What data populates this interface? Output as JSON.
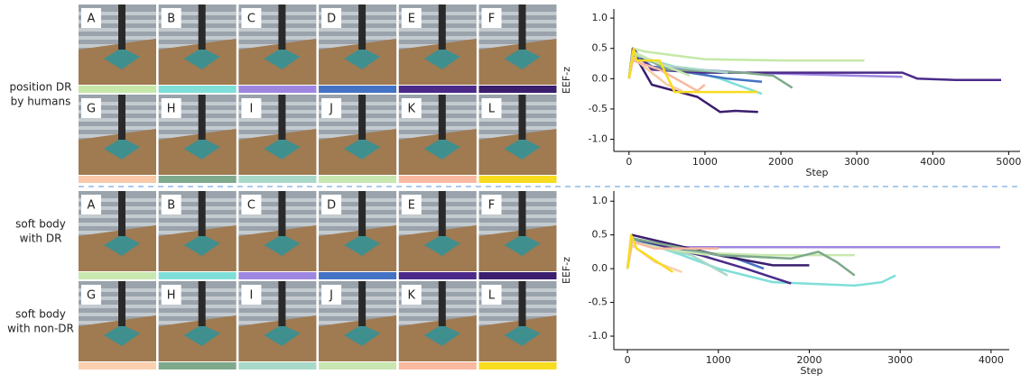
{
  "panels": [
    {
      "row_labels": [
        [
          "position DR",
          "by humans"
        ]
      ],
      "photos": [
        {
          "label": "A",
          "color": "#c5e8a8"
        },
        {
          "label": "B",
          "color": "#7fdfd8"
        },
        {
          "label": "C",
          "color": "#9d86e0"
        },
        {
          "label": "D",
          "color": "#4472c4"
        },
        {
          "label": "E",
          "color": "#4b2a8a"
        },
        {
          "label": "F",
          "color": "#3b1e6e"
        },
        {
          "label": "G",
          "color": "#f9c8a8"
        },
        {
          "label": "H",
          "color": "#7fa98c"
        },
        {
          "label": "I",
          "color": "#a8d8c8"
        },
        {
          "label": "J",
          "color": "#c8e6b0"
        },
        {
          "label": "K",
          "color": "#f9b8a0"
        },
        {
          "label": "L",
          "color": "#f7dc1f"
        }
      ]
    },
    {
      "row_labels": [
        [
          "soft body",
          "with DR"
        ],
        [
          "soft body",
          "with non-DR"
        ]
      ],
      "photos": [
        {
          "label": "A",
          "color": "#c8e8b0"
        },
        {
          "label": "B",
          "color": "#7fdfd8"
        },
        {
          "label": "C",
          "color": "#9d86e0"
        },
        {
          "label": "D",
          "color": "#4472c4"
        },
        {
          "label": "E",
          "color": "#4b2a8a"
        },
        {
          "label": "F",
          "color": "#3b1e6e"
        },
        {
          "label": "G",
          "color": "#fbd0b0"
        },
        {
          "label": "H",
          "color": "#7fa98c"
        },
        {
          "label": "I",
          "color": "#a8d8c8"
        },
        {
          "label": "J",
          "color": "#c8e6b0"
        },
        {
          "label": "K",
          "color": "#f9b8a0"
        },
        {
          "label": "L",
          "color": "#f7dc1f"
        }
      ]
    }
  ],
  "chart_data": [
    {
      "type": "line",
      "x_label": "Step",
      "y_label": "EEF-z",
      "xlim": [
        -200,
        5150
      ],
      "ylim": [
        -1.2,
        1.15
      ],
      "xticks": [
        0,
        1000,
        2000,
        3000,
        4000,
        5000
      ],
      "yticks": [
        {
          "value": -1,
          "label": "-1.0"
        },
        -0.5,
        {
          "value": 0,
          "label": "0.0"
        },
        0.5,
        {
          "value": 1,
          "label": "1.0"
        }
      ],
      "series": [
        {
          "color": "#c5e8a8",
          "x": [
            0,
            50,
            200,
            1000,
            2000,
            3100
          ],
          "values": [
            0,
            0.5,
            0.45,
            0.32,
            0.3,
            0.3
          ]
        },
        {
          "color": "#7fdfd8",
          "x": [
            0,
            50,
            200,
            600,
            1200,
            1750
          ],
          "values": [
            0,
            0.45,
            0.3,
            0.2,
            0.0,
            -0.25
          ]
        },
        {
          "color": "#9d86e0",
          "x": [
            0,
            50,
            300,
            1500,
            3000,
            3600
          ],
          "values": [
            0,
            0.45,
            0.2,
            0.1,
            0.05,
            0.03
          ]
        },
        {
          "color": "#4472c4",
          "x": [
            0,
            50,
            300,
            800,
            1300,
            1750
          ],
          "values": [
            0,
            0.4,
            0.2,
            0.1,
            0.0,
            -0.05
          ]
        },
        {
          "color": "#4b2a8a",
          "x": [
            0,
            50,
            300,
            1000,
            2500,
            3600,
            3800,
            4300,
            4900
          ],
          "values": [
            0,
            0.5,
            0.15,
            0.1,
            0.1,
            0.1,
            0.0,
            -0.02,
            -0.02
          ]
        },
        {
          "color": "#3b1e6e",
          "x": [
            0,
            50,
            300,
            900,
            1200,
            1400,
            1700
          ],
          "values": [
            0,
            0.45,
            -0.1,
            -0.3,
            -0.55,
            -0.53,
            -0.55
          ]
        },
        {
          "color": "#f9c8a8",
          "x": [
            0,
            50,
            200,
            500,
            700
          ],
          "values": [
            0,
            0.35,
            0.2,
            -0.1,
            -0.2
          ]
        },
        {
          "color": "#7fa98c",
          "x": [
            0,
            50,
            500,
            1500,
            1900,
            2150
          ],
          "values": [
            0,
            0.45,
            0.15,
            0.1,
            0.05,
            -0.15
          ]
        },
        {
          "color": "#a8d8c8",
          "x": [
            0,
            50,
            600,
            1300
          ],
          "values": [
            0,
            0.4,
            0.2,
            0.1
          ]
        },
        {
          "color": "#c8e6b0",
          "x": [
            0,
            50,
            300,
            800
          ],
          "values": [
            0,
            0.45,
            0.3,
            0.05
          ]
        },
        {
          "color": "#f9b8a0",
          "x": [
            0,
            50,
            400,
            900,
            1000
          ],
          "values": [
            0,
            0.3,
            0.15,
            -0.2,
            -0.1
          ]
        },
        {
          "color": "#f7dc1f",
          "x": [
            0,
            60,
            100,
            400,
            600,
            1700
          ],
          "values": [
            0,
            0.5,
            0.3,
            0.3,
            -0.22,
            -0.22
          ]
        }
      ]
    },
    {
      "type": "line",
      "x_label": "Step",
      "y_label": "EEF-z",
      "xlim": [
        -150,
        4200
      ],
      "ylim": [
        -1.2,
        1.15
      ],
      "xticks": [
        0,
        1000,
        2000,
        3000,
        4000
      ],
      "yticks": [
        {
          "value": -1,
          "label": "-1.0"
        },
        -0.5,
        {
          "value": 0,
          "label": "0.0"
        },
        0.5,
        {
          "value": 1,
          "label": "1.0"
        }
      ],
      "series": [
        {
          "color": "#c8e8b0",
          "x": [
            0,
            50,
            500,
            1500,
            2500
          ],
          "values": [
            0,
            0.45,
            0.25,
            0.2,
            0.2
          ]
        },
        {
          "color": "#7fdfd8",
          "x": [
            0,
            50,
            600,
            1000,
            1600,
            2500,
            2800,
            2950
          ],
          "values": [
            0,
            0.45,
            0.2,
            0.0,
            -0.2,
            -0.25,
            -0.2,
            -0.1
          ]
        },
        {
          "color": "#9d86e0",
          "x": [
            0,
            50,
            500,
            2000,
            4100
          ],
          "values": [
            0,
            0.4,
            0.32,
            0.32,
            0.32
          ]
        },
        {
          "color": "#4472c4",
          "x": [
            0,
            50,
            800,
            1200,
            1500
          ],
          "values": [
            0,
            0.4,
            0.25,
            0.15,
            0.0
          ]
        },
        {
          "color": "#4b2a8a",
          "x": [
            0,
            50,
            800,
            1300,
            1800
          ],
          "values": [
            0,
            0.45,
            0.2,
            0.0,
            -0.22
          ]
        },
        {
          "color": "#3b1e6e",
          "x": [
            0,
            50,
            1000,
            1600,
            2000
          ],
          "values": [
            0,
            0.5,
            0.2,
            0.05,
            0.05
          ]
        },
        {
          "color": "#fbd0b0",
          "x": [
            0,
            50,
            300,
            600
          ],
          "values": [
            0,
            0.35,
            0.1,
            -0.05
          ]
        },
        {
          "color": "#7fa98c",
          "x": [
            0,
            50,
            1000,
            1800,
            2100,
            2300,
            2500
          ],
          "values": [
            0,
            0.45,
            0.2,
            0.15,
            0.25,
            0.1,
            -0.1
          ]
        },
        {
          "color": "#a8d8c8",
          "x": [
            0,
            50,
            700,
            1100
          ],
          "values": [
            0,
            0.4,
            0.2,
            -0.1
          ]
        },
        {
          "color": "#c8e6b0",
          "x": [
            0,
            50,
            400,
            900
          ],
          "values": [
            0,
            0.4,
            0.3,
            0.2
          ]
        },
        {
          "color": "#f9b8a0",
          "x": [
            0,
            50,
            300,
            1000
          ],
          "values": [
            0,
            0.4,
            0.3,
            0.3
          ]
        },
        {
          "color": "#f7dc1f",
          "x": [
            0,
            40,
            100,
            500
          ],
          "values": [
            0,
            0.5,
            0.3,
            -0.05
          ]
        }
      ]
    }
  ]
}
